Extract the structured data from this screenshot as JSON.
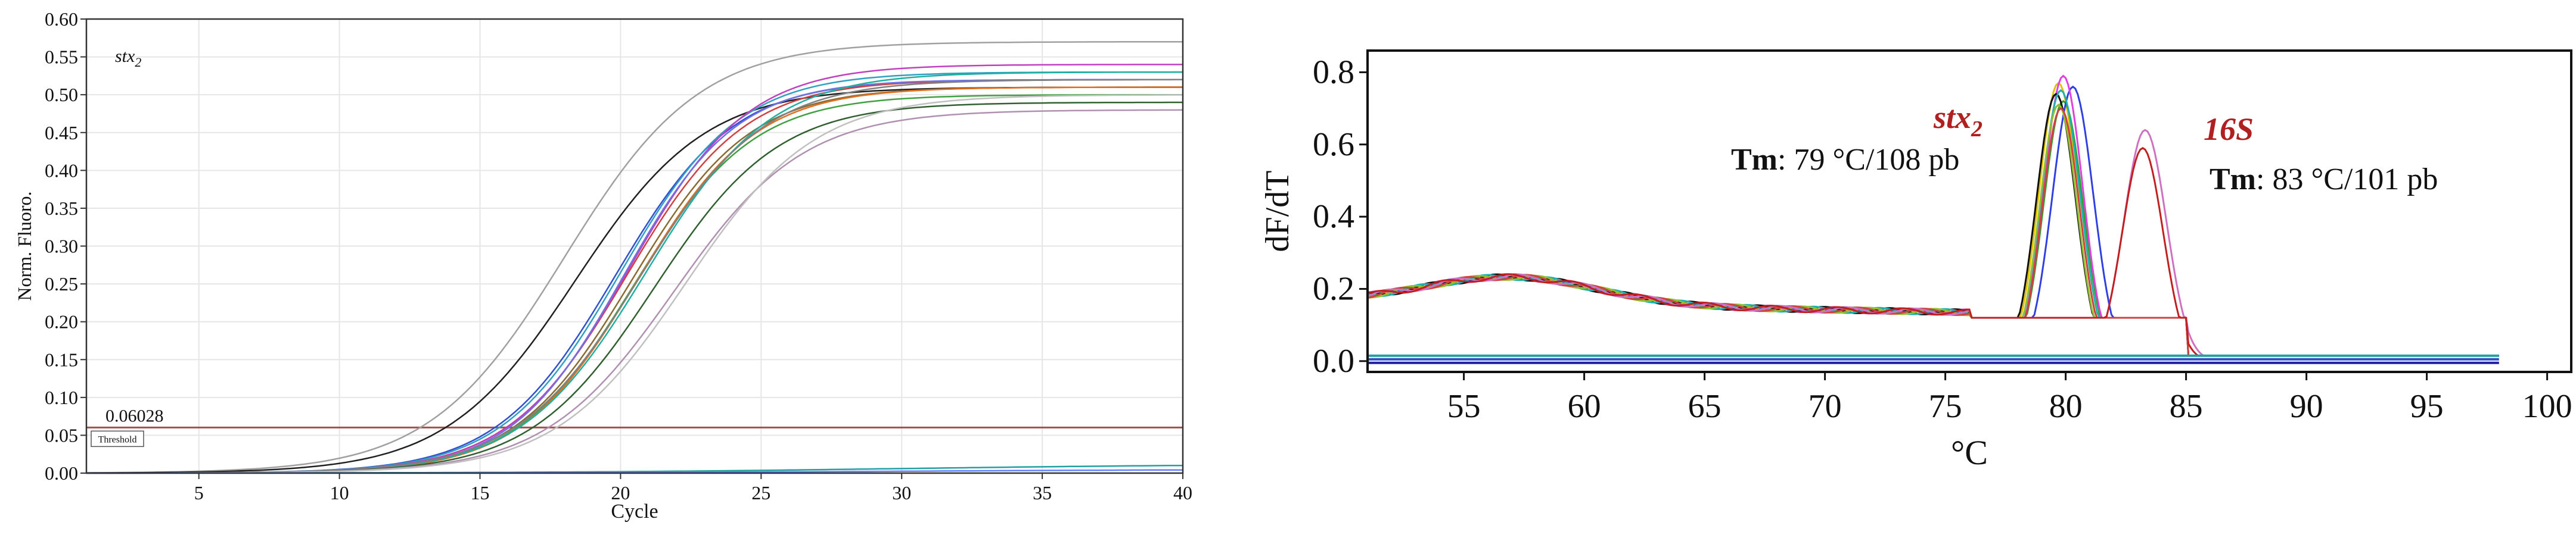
{
  "chart_data": [
    {
      "type": "line",
      "annotation_gene": "stx",
      "annotation_sub": "2",
      "xlabel": "Cycle",
      "ylabel": "Norm. Fluoro.",
      "xlim": [
        1,
        40
      ],
      "ylim": [
        0,
        0.6
      ],
      "xticks": [
        5,
        10,
        15,
        20,
        25,
        30,
        35,
        40
      ],
      "yticks": [
        0.0,
        0.05,
        0.1,
        0.15,
        0.2,
        0.25,
        0.3,
        0.35,
        0.4,
        0.45,
        0.5,
        0.55,
        0.6
      ],
      "ytick_labels": [
        "0.00",
        "0.05",
        "0.10",
        "0.15",
        "0.20",
        "0.25",
        "0.30",
        "0.35",
        "0.40",
        "0.45",
        "0.50",
        "0.55",
        "0.60"
      ],
      "grid": true,
      "threshold": {
        "value": 0.06028,
        "label": "0.06028",
        "box_label": "Threshold",
        "color": "#a05050"
      },
      "series": [
        {
          "color": "#a0a0a0",
          "plateau": 0.57,
          "midpoint": 18.0,
          "slope": 2.4
        },
        {
          "color": "#202020",
          "plateau": 0.51,
          "midpoint": 18.4,
          "slope": 2.3
        },
        {
          "color": "#3050d0",
          "plateau": 0.52,
          "midpoint": 19.8,
          "slope": 2.1
        },
        {
          "color": "#30a0c0",
          "plateau": 0.53,
          "midpoint": 20.0,
          "slope": 2.1
        },
        {
          "color": "#d04040",
          "plateau": 0.52,
          "midpoint": 20.2,
          "slope": 2.1
        },
        {
          "color": "#c040c0",
          "plateau": 0.54,
          "midpoint": 20.3,
          "slope": 2.1
        },
        {
          "color": "#40a040",
          "plateau": 0.5,
          "midpoint": 20.5,
          "slope": 2.1
        },
        {
          "color": "#8a6a30",
          "plateau": 0.51,
          "midpoint": 20.4,
          "slope": 2.1
        },
        {
          "color": "#7070e0",
          "plateau": 0.52,
          "midpoint": 20.1,
          "slope": 2.0
        },
        {
          "color": "#e07020",
          "plateau": 0.51,
          "midpoint": 20.6,
          "slope": 2.1
        },
        {
          "color": "#20b0a0",
          "plateau": 0.53,
          "midpoint": 20.9,
          "slope": 2.2
        },
        {
          "color": "#808080",
          "plateau": 0.52,
          "midpoint": 20.7,
          "slope": 2.2
        },
        {
          "color": "#306030",
          "plateau": 0.49,
          "midpoint": 21.2,
          "slope": 2.2
        },
        {
          "color": "#b090b0",
          "plateau": 0.48,
          "midpoint": 21.9,
          "slope": 2.3
        },
        {
          "color": "#c0c0c0",
          "plateau": 0.5,
          "midpoint": 22.3,
          "slope": 2.3
        },
        {
          "color": "#20a0a0",
          "plateau": 0.012,
          "midpoint": 30.0,
          "slope": 6.0
        },
        {
          "color": "#6080ff",
          "plateau": 0.005,
          "midpoint": 30.0,
          "slope": 6.0
        }
      ]
    },
    {
      "type": "line",
      "xlabel": "°C",
      "ylabel": "dF/dT",
      "xlim": [
        51,
        101
      ],
      "ylim": [
        -0.03,
        0.86
      ],
      "xticks": [
        55,
        60,
        65,
        70,
        75,
        80,
        85,
        90,
        95,
        100
      ],
      "yticks": [
        0.0,
        0.2,
        0.4,
        0.6,
        0.8
      ],
      "ytick_labels": [
        "0.0",
        "0.2",
        "0.4",
        "0.6",
        "0.8"
      ],
      "grid": false,
      "annotations": [
        {
          "gene": "stx",
          "sub": "2",
          "tm_label": "Tm",
          "tm_text": ": 79 °C/108 pb",
          "color": "#b02020"
        },
        {
          "gene": "16S",
          "sub": "",
          "tm_label": "Tm",
          "tm_text": ": 83 °C/101 pb",
          "color": "#b02020"
        }
      ],
      "series": [
        {
          "color": "#e0c000",
          "peak": 0.77,
          "tm": 79.7,
          "width": 1.15
        },
        {
          "color": "#30a030",
          "peak": 0.72,
          "tm": 79.9,
          "width": 1.15
        },
        {
          "color": "#3040e0",
          "peak": 0.76,
          "tm": 80.3,
          "width": 1.2
        },
        {
          "color": "#e040e0",
          "peak": 0.79,
          "tm": 79.9,
          "width": 1.15
        },
        {
          "color": "#101010",
          "peak": 0.74,
          "tm": 79.6,
          "width": 1.15
        },
        {
          "color": "#20b0b0",
          "peak": 0.75,
          "tm": 79.8,
          "width": 1.15
        },
        {
          "color": "#90c030",
          "peak": 0.71,
          "tm": 79.7,
          "width": 1.1
        },
        {
          "color": "#d04040",
          "peak": 0.7,
          "tm": 79.8,
          "width": 1.1
        },
        {
          "color": "#d070c0",
          "peak": 0.64,
          "tm": 83.3,
          "width": 1.25
        },
        {
          "color": "#c02020",
          "peak": 0.59,
          "tm": 83.2,
          "width": 1.2
        },
        {
          "color": "#3050c0",
          "flat": 0.005
        },
        {
          "color": "#20a0a0",
          "flat": 0.015
        },
        {
          "color": "#2020a0",
          "flat": -0.005
        }
      ]
    }
  ]
}
